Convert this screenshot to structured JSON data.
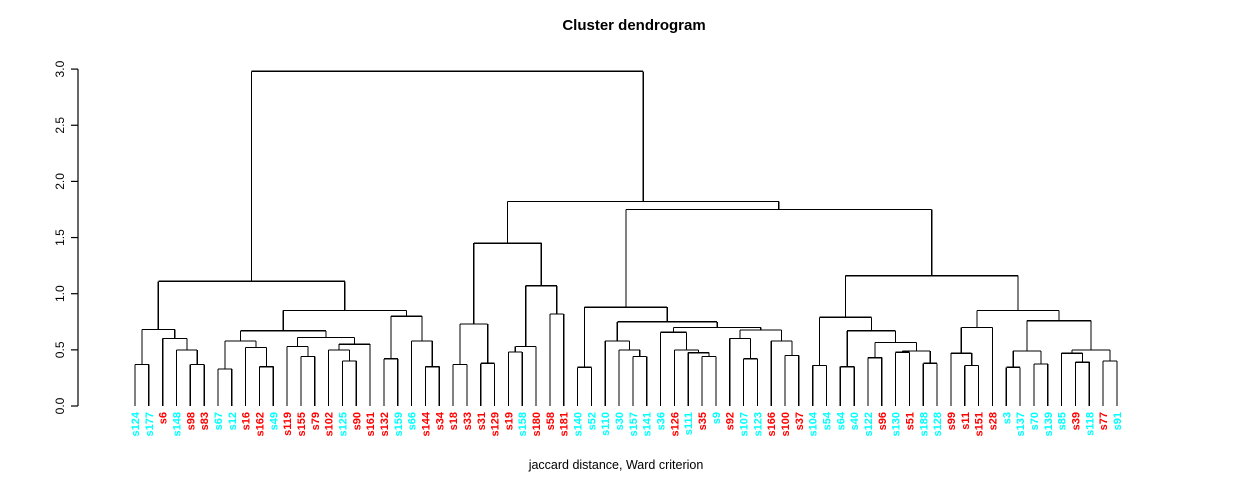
{
  "title": "Cluster dendrogram",
  "xlabel": "jaccard distance, Ward criterion",
  "chart_data": {
    "type": "dendrogram",
    "title": "Cluster dendrogram",
    "xlabel": "jaccard distance, Ward criterion",
    "ylabel": "",
    "y_axis": {
      "ticks": [
        0.0,
        0.5,
        1.0,
        1.5,
        2.0,
        2.5,
        3.0
      ],
      "range": [
        0,
        3
      ],
      "grid": false
    },
    "line_color": "#000000",
    "label_colors": {
      "cyan": "#00FFFF",
      "red": "#FF0000"
    },
    "root_height": 2.98,
    "leaves": [
      {
        "label": "s124",
        "color": "cyan"
      },
      {
        "label": "s177",
        "color": "cyan"
      },
      {
        "label": "s6",
        "color": "red"
      },
      {
        "label": "s148",
        "color": "cyan"
      },
      {
        "label": "s98",
        "color": "red"
      },
      {
        "label": "s83",
        "color": "red"
      },
      {
        "label": "s67",
        "color": "cyan"
      },
      {
        "label": "s12",
        "color": "cyan"
      },
      {
        "label": "s16",
        "color": "red"
      },
      {
        "label": "s162",
        "color": "red"
      },
      {
        "label": "s49",
        "color": "cyan"
      },
      {
        "label": "s119",
        "color": "red"
      },
      {
        "label": "s155",
        "color": "red"
      },
      {
        "label": "s79",
        "color": "red"
      },
      {
        "label": "s102",
        "color": "red"
      },
      {
        "label": "s125",
        "color": "cyan"
      },
      {
        "label": "s90",
        "color": "red"
      },
      {
        "label": "s161",
        "color": "red"
      },
      {
        "label": "s132",
        "color": "red"
      },
      {
        "label": "s159",
        "color": "cyan"
      },
      {
        "label": "s66",
        "color": "cyan"
      },
      {
        "label": "s144",
        "color": "red"
      },
      {
        "label": "s34",
        "color": "red"
      },
      {
        "label": "s18",
        "color": "red"
      },
      {
        "label": "s33",
        "color": "red"
      },
      {
        "label": "s31",
        "color": "red"
      },
      {
        "label": "s129",
        "color": "red"
      },
      {
        "label": "s19",
        "color": "red"
      },
      {
        "label": "s158",
        "color": "cyan"
      },
      {
        "label": "s180",
        "color": "red"
      },
      {
        "label": "s58",
        "color": "red"
      },
      {
        "label": "s181",
        "color": "red"
      },
      {
        "label": "s140",
        "color": "cyan"
      },
      {
        "label": "s52",
        "color": "cyan"
      },
      {
        "label": "s110",
        "color": "cyan"
      },
      {
        "label": "s30",
        "color": "cyan"
      },
      {
        "label": "s157",
        "color": "cyan"
      },
      {
        "label": "s141",
        "color": "cyan"
      },
      {
        "label": "s36",
        "color": "cyan"
      },
      {
        "label": "s126",
        "color": "red"
      },
      {
        "label": "s111",
        "color": "cyan"
      },
      {
        "label": "s35",
        "color": "red"
      },
      {
        "label": "s9",
        "color": "cyan"
      },
      {
        "label": "s92",
        "color": "red"
      },
      {
        "label": "s107",
        "color": "cyan"
      },
      {
        "label": "s123",
        "color": "cyan"
      },
      {
        "label": "s166",
        "color": "red"
      },
      {
        "label": "s100",
        "color": "red"
      },
      {
        "label": "s37",
        "color": "red"
      },
      {
        "label": "s104",
        "color": "cyan"
      },
      {
        "label": "s54",
        "color": "cyan"
      },
      {
        "label": "s64",
        "color": "cyan"
      },
      {
        "label": "s40",
        "color": "cyan"
      },
      {
        "label": "s122",
        "color": "cyan"
      },
      {
        "label": "s96",
        "color": "red"
      },
      {
        "label": "s130",
        "color": "cyan"
      },
      {
        "label": "s51",
        "color": "red"
      },
      {
        "label": "s188",
        "color": "cyan"
      },
      {
        "label": "s128",
        "color": "cyan"
      },
      {
        "label": "s99",
        "color": "red"
      },
      {
        "label": "s11",
        "color": "red"
      },
      {
        "label": "s151",
        "color": "red"
      },
      {
        "label": "s28",
        "color": "red"
      },
      {
        "label": "s3",
        "color": "cyan"
      },
      {
        "label": "s137",
        "color": "cyan"
      },
      {
        "label": "s70",
        "color": "cyan"
      },
      {
        "label": "s139",
        "color": "cyan"
      },
      {
        "label": "s85",
        "color": "cyan"
      },
      {
        "label": "s39",
        "color": "red"
      },
      {
        "label": "s118",
        "color": "cyan"
      },
      {
        "label": "s77",
        "color": "red"
      },
      {
        "label": "s91",
        "color": "cyan"
      }
    ],
    "tree": [
      2.98,
      [
        1.11,
        [
          0.68,
          [
            0.37,
            0,
            1
          ],
          [
            0.6,
            2,
            [
              0.5,
              3,
              [
                0.37,
                4,
                5
              ]
            ]
          ]
        ],
        [
          0.85,
          [
            0.67,
            [
              0.58,
              [
                0.33,
                6,
                7
              ],
              [
                0.52,
                8,
                [
                  0.35,
                  9,
                  10
                ]
              ]
            ],
            [
              0.61,
              [
                0.53,
                11,
                [
                  0.44,
                  12,
                  13
                ]
              ],
              [
                0.55,
                [
                  0.5,
                  14,
                  [
                    0.4,
                    15,
                    16
                  ]
                ],
                17
              ]
            ]
          ],
          [
            0.8,
            [
              0.42,
              18,
              19
            ],
            [
              0.58,
              20,
              [
                0.35,
                21,
                22
              ]
            ]
          ]
        ]
      ],
      [
        1.82,
        [
          1.45,
          [
            0.73,
            [
              0.37,
              23,
              24
            ],
            [
              0.38,
              25,
              26
            ]
          ],
          [
            1.07,
            [
              0.53,
              [
                0.48,
                27,
                28
              ],
              29
            ],
            [
              0.82,
              30,
              31
            ]
          ]
        ],
        [
          1.75,
          [
            0.88,
            [
              0.345,
              32,
              33
            ],
            [
              0.75,
              [
                0.58,
                34,
                [
                  0.5,
                  35,
                  [
                    0.44,
                    36,
                    37
                  ]
                ]
              ],
              [
                0.7,
                [
                  0.656,
                  38,
                  [
                    0.5,
                    39,
                    [
                      0.475,
                      40,
                      [
                        0.44,
                        41,
                        42
                      ]
                    ]
                  ]
                ],
                [
                  0.677,
                  [
                    0.6,
                    43,
                    [
                      0.42,
                      44,
                      45
                    ]
                  ],
                  [
                    0.58,
                    46,
                    [
                      0.45,
                      47,
                      48
                    ]
                  ]
                ]
              ]
            ]
          ],
          [
            1.16,
            [
              0.79,
              [
                0.36,
                49,
                50
              ],
              [
                0.67,
                [
                  0.35,
                  51,
                  52
                ],
                [
                  0.565,
                  [
                    0.43,
                    53,
                    54
                  ],
                  [
                    0.49,
                    [
                      0.478,
                      55,
                      56
                    ],
                    [
                      0.38,
                      57,
                      58
                    ]
                  ]
                ]
              ]
            ],
            [
              0.85,
              [
                0.7,
                [
                  0.47,
                  59,
                  [
                    0.36,
                    60,
                    61
                  ]
                ],
                62
              ],
              [
                0.76,
                [
                  0.49,
                  [
                    0.345,
                    63,
                    64
                  ],
                  [
                    0.375,
                    65,
                    66
                  ]
                ],
                [
                  0.5,
                  [
                    0.47,
                    67,
                    [
                      0.39,
                      68,
                      69
                    ]
                  ],
                  [
                    0.4,
                    70,
                    71
                  ]
                ]
              ]
            ]
          ]
        ]
      ]
    ]
  }
}
